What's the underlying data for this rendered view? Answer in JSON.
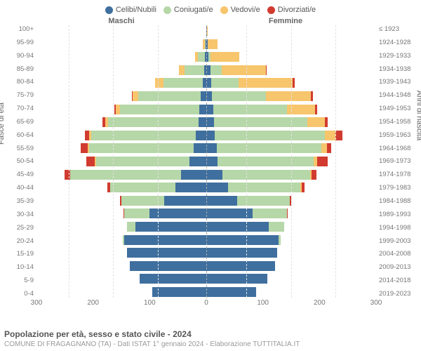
{
  "legend": [
    {
      "label": "Celibi/Nubili",
      "color": "#3f6f9e"
    },
    {
      "label": "Coniugati/e",
      "color": "#b6d7a8"
    },
    {
      "label": "Vedovi/e",
      "color": "#f7c56c"
    },
    {
      "label": "Divorziati/e",
      "color": "#d13b2f"
    }
  ],
  "headers": {
    "male": "Maschi",
    "female": "Femmine"
  },
  "axis_labels": {
    "left": "Fasce di età",
    "right": "Anni di nascita"
  },
  "y_left": [
    "100+",
    "95-99",
    "90-94",
    "85-89",
    "80-84",
    "75-79",
    "70-74",
    "65-69",
    "60-64",
    "55-59",
    "50-54",
    "45-49",
    "40-44",
    "35-39",
    "30-34",
    "25-29",
    "20-24",
    "15-19",
    "10-14",
    "5-9",
    "0-4"
  ],
  "y_right": [
    "≤ 1923",
    "1924-1928",
    "1929-1933",
    "1934-1938",
    "1939-1943",
    "1944-1948",
    "1949-1953",
    "1954-1958",
    "1959-1963",
    "1964-1968",
    "1969-1973",
    "1974-1978",
    "1979-1983",
    "1984-1988",
    "1989-1993",
    "1994-1998",
    "1999-2003",
    "2004-2008",
    "2009-2013",
    "2014-2018",
    "2019-2023"
  ],
  "x_ticks": [
    -300,
    -200,
    -100,
    0,
    100,
    200,
    300
  ],
  "x_max": 300,
  "colors": {
    "single": "#3f6f9e",
    "married": "#b6d7a8",
    "widowed": "#f7c56c",
    "divorced": "#d13b2f",
    "grid": "#e2e2e2",
    "dashed_center": "#aaaaaa",
    "text": "#666666",
    "bg": "#ffffff"
  },
  "font": {
    "title_size": 12,
    "tick_size": 10,
    "label_size": 11,
    "legend_size": 11
  },
  "rows": [
    {
      "male": {
        "s": 0,
        "m": 0,
        "w": 0,
        "d": 0
      },
      "female": {
        "s": 1,
        "m": 0,
        "w": 2,
        "d": 0
      }
    },
    {
      "male": {
        "s": 1,
        "m": 2,
        "w": 3,
        "d": 0
      },
      "female": {
        "s": 2,
        "m": 0,
        "w": 18,
        "d": 0
      }
    },
    {
      "male": {
        "s": 3,
        "m": 12,
        "w": 5,
        "d": 0
      },
      "female": {
        "s": 4,
        "m": 4,
        "w": 50,
        "d": 0
      }
    },
    {
      "male": {
        "s": 4,
        "m": 35,
        "w": 10,
        "d": 0
      },
      "female": {
        "s": 7,
        "m": 20,
        "w": 78,
        "d": 2
      }
    },
    {
      "male": {
        "s": 6,
        "m": 70,
        "w": 14,
        "d": 1
      },
      "female": {
        "s": 9,
        "m": 48,
        "w": 96,
        "d": 3
      }
    },
    {
      "male": {
        "s": 10,
        "m": 110,
        "w": 10,
        "d": 2
      },
      "female": {
        "s": 10,
        "m": 95,
        "w": 80,
        "d": 3
      }
    },
    {
      "male": {
        "s": 12,
        "m": 140,
        "w": 8,
        "d": 3
      },
      "female": {
        "s": 12,
        "m": 130,
        "w": 50,
        "d": 4
      }
    },
    {
      "male": {
        "s": 14,
        "m": 160,
        "w": 5,
        "d": 5
      },
      "female": {
        "s": 14,
        "m": 165,
        "w": 30,
        "d": 6
      }
    },
    {
      "male": {
        "s": 18,
        "m": 185,
        "w": 4,
        "d": 8
      },
      "female": {
        "s": 15,
        "m": 195,
        "w": 18,
        "d": 12
      }
    },
    {
      "male": {
        "s": 22,
        "m": 185,
        "w": 3,
        "d": 12
      },
      "female": {
        "s": 18,
        "m": 185,
        "w": 10,
        "d": 8
      }
    },
    {
      "male": {
        "s": 30,
        "m": 165,
        "w": 2,
        "d": 15
      },
      "female": {
        "s": 20,
        "m": 170,
        "w": 6,
        "d": 18
      }
    },
    {
      "male": {
        "s": 45,
        "m": 195,
        "w": 1,
        "d": 10
      },
      "female": {
        "s": 28,
        "m": 155,
        "w": 3,
        "d": 9
      }
    },
    {
      "male": {
        "s": 55,
        "m": 115,
        "w": 0,
        "d": 5
      },
      "female": {
        "s": 38,
        "m": 128,
        "w": 2,
        "d": 5
      }
    },
    {
      "male": {
        "s": 75,
        "m": 75,
        "w": 0,
        "d": 3
      },
      "female": {
        "s": 55,
        "m": 92,
        "w": 0,
        "d": 3
      }
    },
    {
      "male": {
        "s": 100,
        "m": 45,
        "w": 0,
        "d": 1
      },
      "female": {
        "s": 82,
        "m": 60,
        "w": 0,
        "d": 1
      }
    },
    {
      "male": {
        "s": 125,
        "m": 15,
        "w": 0,
        "d": 0
      },
      "female": {
        "s": 110,
        "m": 28,
        "w": 0,
        "d": 0
      }
    },
    {
      "male": {
        "s": 145,
        "m": 2,
        "w": 0,
        "d": 0
      },
      "female": {
        "s": 128,
        "m": 4,
        "w": 0,
        "d": 0
      }
    },
    {
      "male": {
        "s": 140,
        "m": 0,
        "w": 0,
        "d": 0
      },
      "female": {
        "s": 125,
        "m": 0,
        "w": 0,
        "d": 0
      }
    },
    {
      "male": {
        "s": 135,
        "m": 0,
        "w": 0,
        "d": 0
      },
      "female": {
        "s": 122,
        "m": 0,
        "w": 0,
        "d": 0
      }
    },
    {
      "male": {
        "s": 118,
        "m": 0,
        "w": 0,
        "d": 0
      },
      "female": {
        "s": 108,
        "m": 0,
        "w": 0,
        "d": 0
      }
    },
    {
      "male": {
        "s": 95,
        "m": 0,
        "w": 0,
        "d": 0
      },
      "female": {
        "s": 88,
        "m": 0,
        "w": 0,
        "d": 0
      }
    }
  ],
  "title": "Popolazione per età, sesso e stato civile - 2024",
  "subtitle": "COMUNE DI FRAGAGNANO (TA) - Dati ISTAT 1° gennaio 2024 - Elaborazione TUTTITALIA.IT"
}
